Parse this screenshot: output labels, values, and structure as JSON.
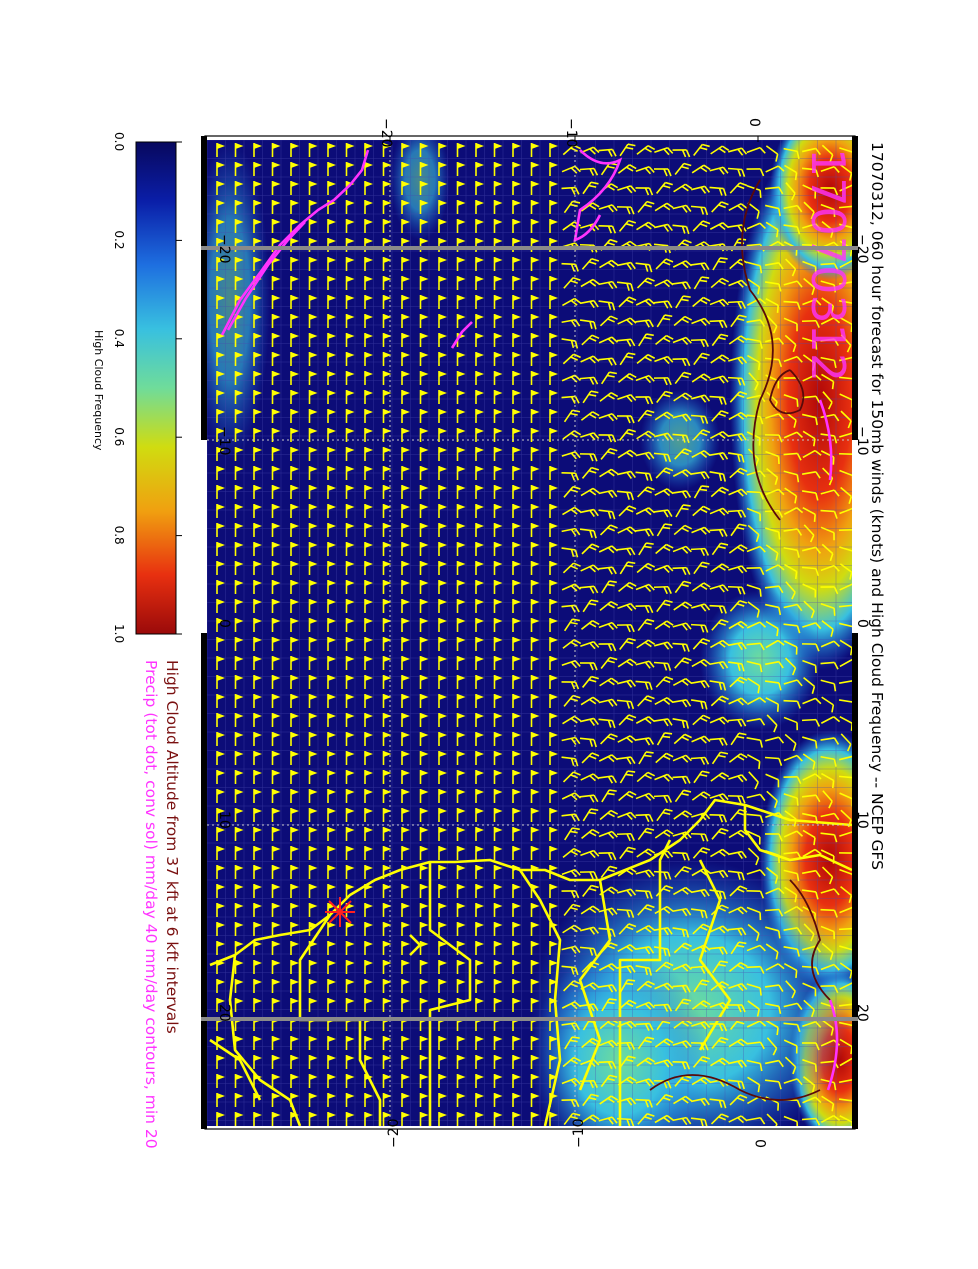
{
  "title": "17070312, 060 hour forecast for 150mb winds (knots) and High Cloud Frequency -- NCEP GFS",
  "stamp": "17070312",
  "subtitle_altitude": "High Cloud Altitude from 37 kft at 6 kft intervals",
  "subtitle_precip": "Precip (tot dot, conv sol) mm/day 40 mm/day contours, min 20",
  "colorbar": {
    "label": "High Cloud Frequency",
    "ticks": [
      "0.0",
      "0.2",
      "0.4",
      "0.6",
      "0.8",
      "1.0"
    ],
    "colors": [
      "#08085e",
      "#0a1ea8",
      "#1e6fe0",
      "#38c0e0",
      "#6fdc9a",
      "#d0dc10",
      "#f0a010",
      "#e83010",
      "#9a0a0a"
    ]
  },
  "axes": {
    "lon_ticks": [
      "−20",
      "−10",
      "0",
      "10",
      "20"
    ],
    "lat_ticks": [
      "−20",
      "−10",
      "0"
    ]
  },
  "colors": {
    "barb": "#ffff00",
    "precip": "#ff33ff",
    "altitude_contour": "#8a1a1a",
    "coast": "#ffff00",
    "ocean": "#0c0c78"
  },
  "marker": "station-star"
}
